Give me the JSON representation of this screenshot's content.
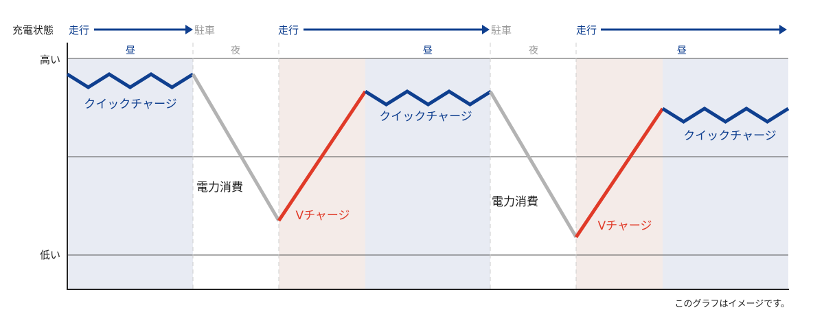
{
  "header": {
    "label": "充電状態",
    "phases": [
      "走行",
      "駐車",
      "走行",
      "駐車",
      "走行"
    ]
  },
  "periods": [
    "昼",
    "夜",
    "昼",
    "夜",
    "昼"
  ],
  "y_axis": {
    "high": "高い",
    "low": "低い"
  },
  "annotations": {
    "quick1": "クイックチャージ",
    "consume1": "電力消費",
    "v1": "Vチャージ",
    "quick2": "クイックチャージ",
    "consume2": "電力消費",
    "v2": "Vチャージ",
    "quick3": "クイックチャージ"
  },
  "footnote": "このグラフはイメージです。",
  "colors": {
    "drive": "#0f3f8f",
    "park": "#999999",
    "quick_charge": "#0f3f8f",
    "consumption": "#b3b3b3",
    "v_charge": "#e03a28",
    "day_bg": "#e8ebf3",
    "v_charge_bg": "#f4ebe8"
  }
}
